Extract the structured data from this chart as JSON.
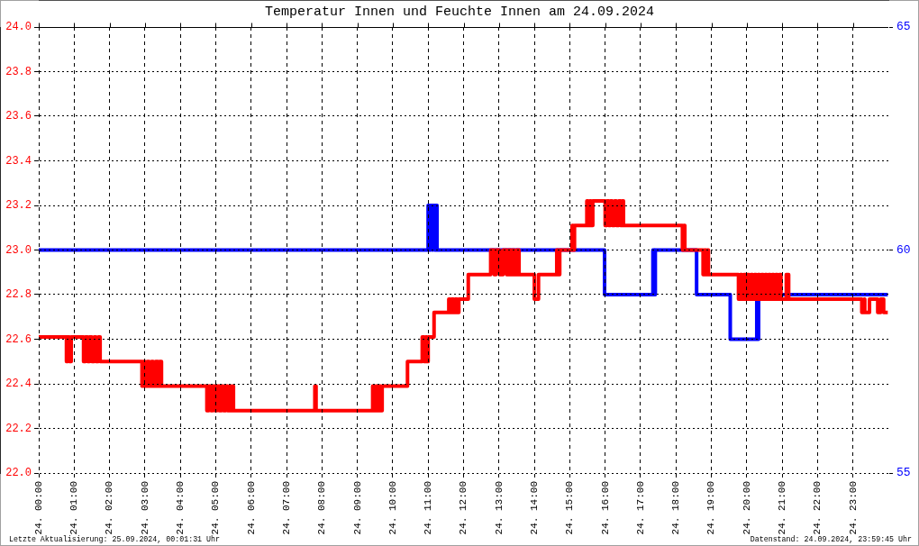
{
  "chart_data": {
    "type": "step",
    "title": "Temperatur Innen und Feuchte Innen am 24.09.2024",
    "series": [
      {
        "color": "#ff0000",
        "x": [
          "2024-09-24T00:00",
          "2024-09-24T00:47",
          "2024-09-24T00:49",
          "2024-09-24T00:52",
          "2024-09-24T00:55",
          "2024-09-24T01:16",
          "2024-09-24T01:19",
          "2024-09-24T01:23",
          "2024-09-24T01:26",
          "2024-09-24T01:30",
          "2024-09-24T01:34",
          "2024-09-24T01:37",
          "2024-09-24T01:41",
          "2024-09-24T01:44",
          "2024-09-24T02:55",
          "2024-09-24T02:57",
          "2024-09-24T03:00",
          "2024-09-24T03:04",
          "2024-09-24T03:07",
          "2024-09-24T03:11",
          "2024-09-24T03:14",
          "2024-09-24T03:18",
          "2024-09-24T03:22",
          "2024-09-24T03:25",
          "2024-09-24T03:28",
          "2024-09-24T04:45",
          "2024-09-24T04:48",
          "2024-09-24T04:52",
          "2024-09-24T04:55",
          "2024-09-24T04:59",
          "2024-09-24T05:02",
          "2024-09-24T05:06",
          "2024-09-24T05:10",
          "2024-09-24T05:13",
          "2024-09-24T05:17",
          "2024-09-24T05:20",
          "2024-09-24T05:24",
          "2024-09-24T05:26",
          "2024-09-24T05:28",
          "2024-09-24T05:30",
          "2024-09-24T07:48",
          "2024-09-24T07:50",
          "2024-09-24T09:26",
          "2024-09-24T09:28",
          "2024-09-24T09:31",
          "2024-09-24T09:34",
          "2024-09-24T09:37",
          "2024-09-24T09:39",
          "2024-09-24T09:42",
          "2024-09-24T10:25",
          "2024-09-24T10:50",
          "2024-09-24T10:53",
          "2024-09-24T10:56",
          "2024-09-24T10:58",
          "2024-09-24T11:00",
          "2024-09-24T11:10",
          "2024-09-24T11:35",
          "2024-09-24T11:37",
          "2024-09-24T11:40",
          "2024-09-24T11:43",
          "2024-09-24T11:46",
          "2024-09-24T11:49",
          "2024-09-24T11:52",
          "2024-09-24T12:08",
          "2024-09-24T12:46",
          "2024-09-24T12:52",
          "2024-09-24T12:55",
          "2024-09-24T13:01",
          "2024-09-24T13:07",
          "2024-09-24T13:13",
          "2024-09-24T13:16",
          "2024-09-24T13:20",
          "2024-09-24T13:23",
          "2024-09-24T13:26",
          "2024-09-24T13:30",
          "2024-09-24T13:34",
          "2024-09-24T14:00",
          "2024-09-24T14:07",
          "2024-09-24T14:38",
          "2024-09-24T14:41",
          "2024-09-24T14:43",
          "2024-09-24T15:04",
          "2024-09-24T15:06",
          "2024-09-24T15:08",
          "2024-09-24T15:29",
          "2024-09-24T15:31",
          "2024-09-24T15:34",
          "2024-09-24T15:36",
          "2024-09-24T15:39",
          "2024-09-24T16:00",
          "2024-09-24T16:03",
          "2024-09-24T16:06",
          "2024-09-24T16:09",
          "2024-09-24T16:12",
          "2024-09-24T16:16",
          "2024-09-24T16:19",
          "2024-09-24T16:23",
          "2024-09-24T16:26",
          "2024-09-24T16:29",
          "2024-09-24T16:31",
          "2024-09-24T18:11",
          "2024-09-24T18:13",
          "2024-09-24T18:15",
          "2024-09-24T18:46",
          "2024-09-24T18:48",
          "2024-09-24T18:51",
          "2024-09-24T18:53",
          "2024-09-24T18:55",
          "2024-09-24T19:46",
          "2024-09-24T19:49",
          "2024-09-24T19:52",
          "2024-09-24T19:55",
          "2024-09-24T19:58",
          "2024-09-24T20:01",
          "2024-09-24T20:04",
          "2024-09-24T20:07",
          "2024-09-24T20:10",
          "2024-09-24T20:13",
          "2024-09-24T20:16",
          "2024-09-24T20:19",
          "2024-09-24T20:22",
          "2024-09-24T20:25",
          "2024-09-24T20:28",
          "2024-09-24T20:31",
          "2024-09-24T20:34",
          "2024-09-24T20:37",
          "2024-09-24T20:40",
          "2024-09-24T20:43",
          "2024-09-24T20:46",
          "2024-09-24T20:49",
          "2024-09-24T20:52",
          "2024-09-24T20:55",
          "2024-09-24T20:58",
          "2024-09-24T21:07",
          "2024-09-24T21:11",
          "2024-09-24T23:15",
          "2024-09-24T23:19",
          "2024-09-24T23:20",
          "2024-09-24T23:28",
          "2024-09-24T23:42",
          "2024-09-24T23:47",
          "2024-09-24T23:52",
          "2024-09-24T23:59"
        ],
        "values": [
          22.61,
          22.5,
          22.61,
          22.5,
          22.61,
          22.5,
          22.61,
          22.5,
          22.61,
          22.5,
          22.61,
          22.5,
          22.61,
          22.5,
          22.39,
          22.5,
          22.39,
          22.5,
          22.39,
          22.5,
          22.39,
          22.5,
          22.39,
          22.5,
          22.39,
          22.28,
          22.39,
          22.28,
          22.39,
          22.28,
          22.39,
          22.28,
          22.39,
          22.28,
          22.39,
          22.28,
          22.39,
          22.28,
          22.39,
          22.28,
          22.39,
          22.28,
          22.39,
          22.28,
          22.39,
          22.28,
          22.39,
          22.28,
          22.39,
          22.5,
          22.61,
          22.5,
          22.61,
          22.5,
          22.61,
          22.72,
          22.78,
          22.72,
          22.78,
          22.72,
          22.78,
          22.72,
          22.78,
          22.89,
          23.0,
          22.89,
          23.0,
          22.89,
          23.0,
          22.89,
          23.0,
          22.89,
          23.0,
          22.89,
          23.0,
          22.89,
          22.78,
          22.89,
          23.0,
          22.89,
          23.0,
          23.11,
          23.0,
          23.11,
          23.22,
          23.11,
          23.22,
          23.11,
          23.22,
          23.11,
          23.22,
          23.11,
          23.22,
          23.11,
          23.22,
          23.11,
          23.22,
          23.11,
          23.22,
          23.11,
          23.0,
          23.11,
          23.0,
          22.89,
          23.0,
          22.89,
          23.0,
          22.89,
          22.78,
          22.89,
          22.78,
          22.89,
          22.78,
          22.89,
          22.78,
          22.89,
          22.78,
          22.89,
          22.78,
          22.89,
          22.78,
          22.89,
          22.78,
          22.89,
          22.78,
          22.89,
          22.78,
          22.89,
          22.78,
          22.89,
          22.78,
          22.89,
          22.78,
          22.89,
          22.78,
          22.72,
          22.78,
          22.72,
          22.78,
          22.72,
          22.78,
          22.72,
          22.72
        ]
      },
      {
        "color": "#0000ff",
        "axis": "y2",
        "x": [
          "2024-09-24T00:00",
          "2024-09-24T11:00",
          "2024-09-24T11:02",
          "2024-09-24T11:04",
          "2024-09-24T11:07",
          "2024-09-24T11:08",
          "2024-09-24T11:11",
          "2024-09-24T11:13",
          "2024-09-24T11:15",
          "2024-09-24T15:59",
          "2024-09-24T17:21",
          "2024-09-24T17:23",
          "2024-09-24T17:25",
          "2024-09-24T18:35",
          "2024-09-24T19:32",
          "2024-09-24T20:17",
          "2024-09-24T20:19",
          "2024-09-24T20:20",
          "2024-09-24T23:59"
        ],
        "values": [
          60,
          61,
          60,
          61,
          60,
          61,
          60,
          61,
          60,
          59,
          60,
          59,
          60,
          59,
          58,
          59,
          58,
          59,
          59
        ]
      }
    ],
    "xlim": [
      "2024-09-24T00:00",
      "2024-09-25T00:00"
    ],
    "xticks": [
      {
        "value": "2024-09-24T00:00",
        "label": "24. 00:00"
      },
      {
        "value": "2024-09-24T01:00",
        "label": "24. 01:00"
      },
      {
        "value": "2024-09-24T02:00",
        "label": "24. 02:00"
      },
      {
        "value": "2024-09-24T03:00",
        "label": "24. 03:00"
      },
      {
        "value": "2024-09-24T04:00",
        "label": "24. 04:00"
      },
      {
        "value": "2024-09-24T05:00",
        "label": "24. 05:00"
      },
      {
        "value": "2024-09-24T06:00",
        "label": "24. 06:00"
      },
      {
        "value": "2024-09-24T07:00",
        "label": "24. 07:00"
      },
      {
        "value": "2024-09-24T08:00",
        "label": "24. 08:00"
      },
      {
        "value": "2024-09-24T09:00",
        "label": "24. 09:00"
      },
      {
        "value": "2024-09-24T10:00",
        "label": "24. 10:00"
      },
      {
        "value": "2024-09-24T11:00",
        "label": "24. 11:00"
      },
      {
        "value": "2024-09-24T12:00",
        "label": "24. 12:00"
      },
      {
        "value": "2024-09-24T13:00",
        "label": "24. 13:00"
      },
      {
        "value": "2024-09-24T14:00",
        "label": "24. 14:00"
      },
      {
        "value": "2024-09-24T15:00",
        "label": "24. 15:00"
      },
      {
        "value": "2024-09-24T16:00",
        "label": "24. 16:00"
      },
      {
        "value": "2024-09-24T17:00",
        "label": "24. 17:00"
      },
      {
        "value": "2024-09-24T18:00",
        "label": "24. 18:00"
      },
      {
        "value": "2024-09-24T19:00",
        "label": "24. 19:00"
      },
      {
        "value": "2024-09-24T20:00",
        "label": "24. 20:00"
      },
      {
        "value": "2024-09-24T21:00",
        "label": "24. 21:00"
      },
      {
        "value": "2024-09-24T22:00",
        "label": "24. 22:00"
      },
      {
        "value": "2024-09-24T23:00",
        "label": "24. 23:00"
      }
    ],
    "ylim": [
      22,
      24
    ],
    "yticks": [
      {
        "value": 22,
        "label": "22.0"
      },
      22.2,
      22.4,
      22.6,
      22.8,
      {
        "value": 23,
        "label": "23.0"
      },
      23.2,
      23.4,
      23.6,
      23.8,
      {
        "value": 24,
        "label": "24.0"
      }
    ],
    "y2lim": [
      55,
      65
    ],
    "y2ticks": [
      55,
      60,
      65
    ],
    "grid": true,
    "annotations": [
      "Letzte Aktualisierung: 25.09.2024, 00:01:31 Uhr",
      "Datenstand: 24.09.2024, 23:59:45 Uhr"
    ]
  }
}
